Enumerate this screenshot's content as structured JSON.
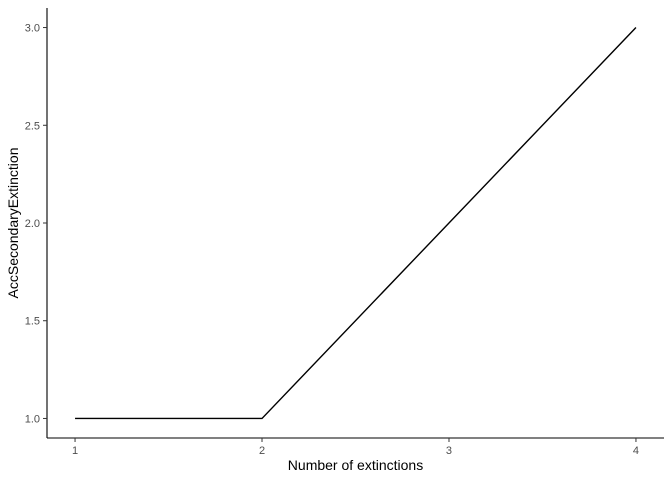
{
  "chart_data": {
    "type": "line",
    "x": [
      1,
      2,
      3,
      4
    ],
    "series": [
      {
        "values": [
          1.0,
          1.0,
          2.0,
          3.0
        ]
      }
    ],
    "title": "",
    "xlabel": "Number of extinctions",
    "ylabel": "AccSecondaryExtinction",
    "xlim": [
      0.85,
      4.15
    ],
    "ylim": [
      0.9,
      3.1
    ],
    "xticks": [
      1,
      2,
      3,
      4
    ],
    "xtick_labels": [
      "1",
      "2",
      "3",
      "4"
    ],
    "yticks": [
      1.0,
      1.5,
      2.0,
      2.5,
      3.0
    ],
    "ytick_labels": [
      "1.0",
      "1.5",
      "2.0",
      "2.5",
      "3.0"
    ],
    "grid": false,
    "line_color": "#000000"
  }
}
